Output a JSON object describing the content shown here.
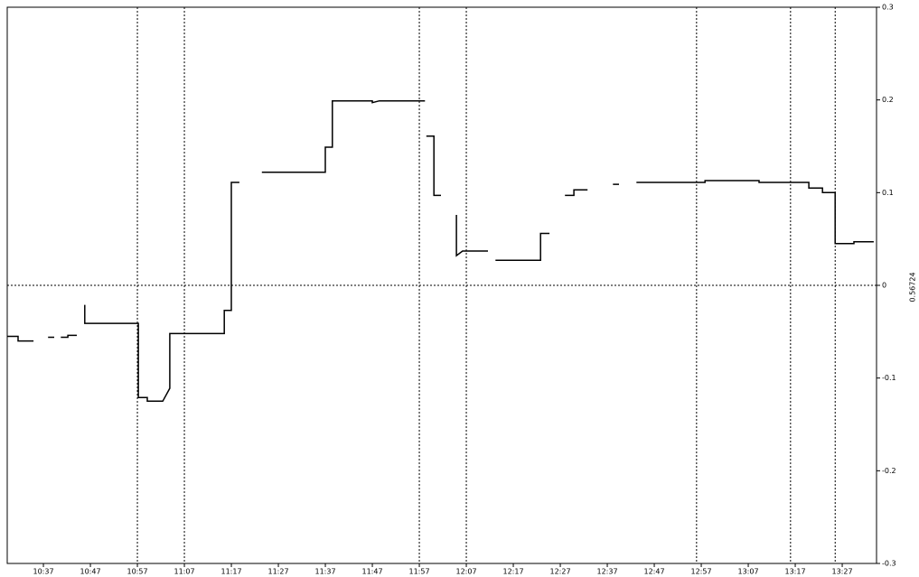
{
  "chart_data": {
    "type": "line",
    "y_axis_label": "0.56724",
    "color": "#000000",
    "x": [
      2.3,
      4.6,
      4.6,
      7.9,
      null,
      11.0,
      12.3,
      null,
      13.7,
      15.2,
      15.2,
      17.1,
      null,
      18.8,
      18.8,
      30.2,
      30.2,
      32.1,
      32.1,
      35.4,
      36.9,
      36.9,
      48.5,
      48.5,
      50.0,
      50.0,
      51.7,
      null,
      56.5,
      70.0,
      70.0,
      71.5,
      71.5,
      80.0,
      80.0,
      81.5,
      91.2,
      null,
      91.5,
      93.1,
      93.1,
      94.6,
      null,
      97.9,
      97.9,
      99.2,
      104.6,
      null,
      106.2,
      115.8,
      115.8,
      117.7,
      null,
      121.0,
      122.9,
      122.9,
      125.8,
      null,
      131.2,
      132.5,
      null,
      136.2,
      150.8,
      150.8,
      162.3,
      162.3,
      172.9,
      172.9,
      175.8,
      175.8,
      178.5,
      178.5,
      182.5,
      182.5,
      186.7
    ],
    "values": [
      -0.055,
      -0.055,
      -0.06,
      -0.06,
      null,
      -0.056,
      -0.056,
      null,
      -0.056,
      -0.056,
      -0.054,
      -0.054,
      null,
      -0.021,
      -0.041,
      -0.041,
      -0.121,
      -0.121,
      -0.125,
      -0.125,
      -0.111,
      -0.052,
      -0.052,
      -0.027,
      -0.027,
      0.111,
      0.111,
      null,
      0.122,
      0.122,
      0.149,
      0.149,
      0.199,
      0.199,
      0.197,
      0.199,
      0.199,
      null,
      0.161,
      0.161,
      0.097,
      0.097,
      null,
      0.076,
      0.032,
      0.037,
      0.037,
      null,
      0.027,
      0.027,
      0.056,
      0.056,
      null,
      0.097,
      0.097,
      0.103,
      0.103,
      null,
      0.109,
      0.109,
      null,
      0.111,
      0.111,
      0.113,
      0.113,
      0.111,
      0.111,
      0.105,
      0.105,
      0.1,
      0.1,
      0.045,
      0.045,
      0.047,
      0.047
    ],
    "xlim": [
      2.3,
      187.3
    ],
    "ylim": [
      -0.3,
      0.3
    ],
    "yticks": [
      -0.3,
      -0.2,
      -0.1,
      0,
      0.1,
      0.2,
      0.3
    ],
    "xticks": [
      {
        "value": 10,
        "label": "10:37"
      },
      {
        "value": 20,
        "label": "10:47"
      },
      {
        "value": 30,
        "label": "10:57"
      },
      {
        "value": 40,
        "label": "11:07"
      },
      {
        "value": 50,
        "label": "11:17"
      },
      {
        "value": 60,
        "label": "11:27"
      },
      {
        "value": 70,
        "label": "11:37"
      },
      {
        "value": 80,
        "label": "11:47"
      },
      {
        "value": 90,
        "label": "11:57"
      },
      {
        "value": 100,
        "label": "12:07"
      },
      {
        "value": 110,
        "label": "12:17"
      },
      {
        "value": 120,
        "label": "12:27"
      },
      {
        "value": 130,
        "label": "12:37"
      },
      {
        "value": 140,
        "label": "12:47"
      },
      {
        "value": 150,
        "label": "12:57"
      },
      {
        "value": 160,
        "label": "13:07"
      },
      {
        "value": 170,
        "label": "13:17"
      },
      {
        "value": 180,
        "label": "13:27"
      }
    ],
    "vlines": [
      30,
      40,
      90,
      100,
      149,
      169,
      178.5
    ],
    "hlines": [
      0
    ]
  }
}
